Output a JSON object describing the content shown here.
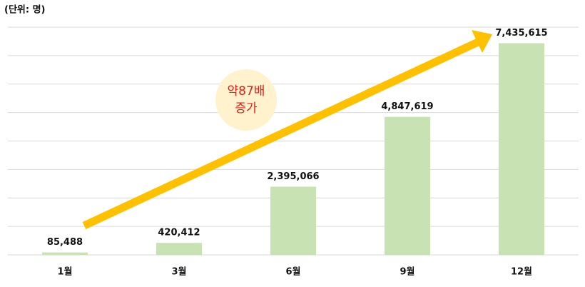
{
  "chart_data": {
    "type": "bar",
    "unit_label": "(단위: 명)",
    "categories": [
      "1월",
      "3월",
      "6월",
      "9월",
      "12월"
    ],
    "values": [
      85488,
      420412,
      2395066,
      4847619,
      7435615
    ],
    "value_labels": [
      "85,488",
      "420,412",
      "2,395,066",
      "4,847,619",
      "7,435,615"
    ],
    "color": "#c9e2b4",
    "ylim": [
      0,
      8000000
    ],
    "yticks": [
      0,
      1000000,
      2000000,
      3000000,
      4000000,
      5000000,
      6000000,
      7000000,
      8000000
    ],
    "grid": true,
    "annotation": [
      "약87배",
      "증가"
    ]
  }
}
